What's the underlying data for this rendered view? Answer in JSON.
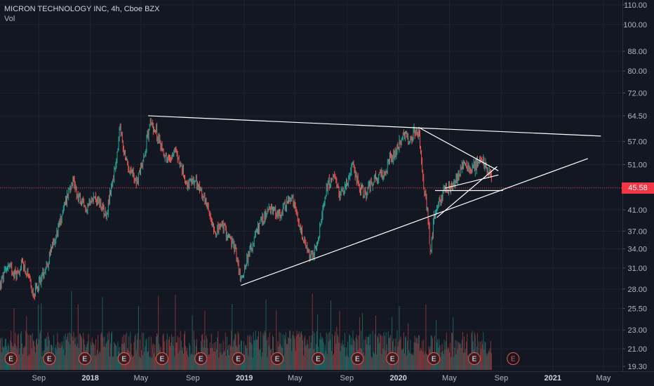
{
  "legend": {
    "symbol_line": "MICRON TECHNOLOGY INC, 4h, Cboe BZX",
    "volume_label": "Vol"
  },
  "current_price": {
    "label": "45.58",
    "value": 45.58,
    "color": "#f23645"
  },
  "colors": {
    "background": "#131722",
    "up": "#26a69a",
    "down": "#ef5350",
    "trendline": "#ffffff",
    "axis_text": "#b2b5be",
    "price_line": "#f23645"
  },
  "chart_data": {
    "type": "candlestick",
    "symbol": "MICRON TECHNOLOGY INC",
    "interval": "4h",
    "exchange": "Cboe BZX",
    "y_scale": "log",
    "ylim": [
      19.3,
      110.0
    ],
    "y_ticks": [
      110.0,
      100.0,
      88.0,
      80.0,
      72.0,
      64.5,
      57.0,
      51.0,
      45.58,
      41.0,
      37.0,
      34.0,
      31.0,
      28.0,
      25.5,
      23.0,
      21.0,
      19.3
    ],
    "y_tick_labels": [
      "110.00",
      "100.00",
      "88.00",
      "80.00",
      "72.00",
      "64.50",
      "57.00",
      "51.00",
      "45.58",
      "41.00",
      "37.00",
      "34.00",
      "31.00",
      "28.00",
      "25.50",
      "23.00",
      "21.00",
      "19.30"
    ],
    "x_range": [
      "2017-06-01",
      "2021-06-15"
    ],
    "x_ticks": [
      {
        "date": "2017-09-01",
        "label": "Sep"
      },
      {
        "date": "2018-01-01",
        "label": "2018"
      },
      {
        "date": "2018-05-01",
        "label": "May"
      },
      {
        "date": "2018-09-01",
        "label": "Sep"
      },
      {
        "date": "2019-01-01",
        "label": "2019"
      },
      {
        "date": "2019-05-01",
        "label": "May"
      },
      {
        "date": "2019-09-01",
        "label": "Sep"
      },
      {
        "date": "2020-01-01",
        "label": "2020"
      },
      {
        "date": "2020-05-01",
        "label": "May"
      },
      {
        "date": "2020-09-01",
        "label": "Sep"
      },
      {
        "date": "2021-01-01",
        "label": "2021"
      },
      {
        "date": "2021-05-01",
        "label": "May"
      }
    ],
    "price_path": [
      [
        "2017-06-01",
        28.5
      ],
      [
        "2017-06-20",
        31.5
      ],
      [
        "2017-07-10",
        30.0
      ],
      [
        "2017-07-25",
        31.8
      ],
      [
        "2017-08-15",
        28.0
      ],
      [
        "2017-08-22",
        27.5
      ],
      [
        "2017-09-10",
        30.0
      ],
      [
        "2017-09-25",
        32.5
      ],
      [
        "2017-10-15",
        37.0
      ],
      [
        "2017-11-01",
        42.0
      ],
      [
        "2017-11-20",
        48.0
      ],
      [
        "2017-12-01",
        44.0
      ],
      [
        "2017-12-20",
        41.0
      ],
      [
        "2018-01-05",
        44.0
      ],
      [
        "2018-01-25",
        42.0
      ],
      [
        "2018-02-08",
        40.0
      ],
      [
        "2018-02-20",
        46.0
      ],
      [
        "2018-03-05",
        52.0
      ],
      [
        "2018-03-12",
        61.0
      ],
      [
        "2018-03-25",
        52.0
      ],
      [
        "2018-04-10",
        49.0
      ],
      [
        "2018-04-22",
        47.0
      ],
      [
        "2018-05-10",
        54.0
      ],
      [
        "2018-05-22",
        62.5
      ],
      [
        "2018-06-05",
        60.0
      ],
      [
        "2018-06-20",
        55.0
      ],
      [
        "2018-07-05",
        52.0
      ],
      [
        "2018-07-20",
        55.0
      ],
      [
        "2018-08-05",
        50.0
      ],
      [
        "2018-08-20",
        46.0
      ],
      [
        "2018-09-05",
        47.0
      ],
      [
        "2018-09-20",
        45.0
      ],
      [
        "2018-10-10",
        40.0
      ],
      [
        "2018-10-25",
        37.0
      ],
      [
        "2018-11-10",
        38.0
      ],
      [
        "2018-11-25",
        36.0
      ],
      [
        "2018-12-10",
        34.0
      ],
      [
        "2018-12-24",
        29.0
      ],
      [
        "2019-01-05",
        32.0
      ],
      [
        "2019-01-20",
        34.5
      ],
      [
        "2019-02-05",
        38.0
      ],
      [
        "2019-02-20",
        40.0
      ],
      [
        "2019-03-10",
        41.5
      ],
      [
        "2019-03-25",
        39.5
      ],
      [
        "2019-04-10",
        42.5
      ],
      [
        "2019-04-25",
        43.0
      ],
      [
        "2019-05-10",
        38.0
      ],
      [
        "2019-05-25",
        34.5
      ],
      [
        "2019-06-05",
        32.5
      ],
      [
        "2019-06-20",
        34.0
      ],
      [
        "2019-07-01",
        38.0
      ],
      [
        "2019-07-15",
        46.0
      ],
      [
        "2019-07-30",
        48.0
      ],
      [
        "2019-08-15",
        44.0
      ],
      [
        "2019-08-28",
        46.0
      ],
      [
        "2019-09-15",
        50.5
      ],
      [
        "2019-09-30",
        46.0
      ],
      [
        "2019-10-15",
        44.0
      ],
      [
        "2019-10-30",
        47.0
      ],
      [
        "2019-11-15",
        48.0
      ],
      [
        "2019-11-28",
        48.5
      ],
      [
        "2019-12-10",
        52.0
      ],
      [
        "2019-12-24",
        54.0
      ],
      [
        "2020-01-10",
        58.0
      ],
      [
        "2020-01-20",
        59.0
      ],
      [
        "2020-01-28",
        56.0
      ],
      [
        "2020-02-10",
        60.5
      ],
      [
        "2020-02-20",
        58.0
      ],
      [
        "2020-02-28",
        48.0
      ],
      [
        "2020-03-10",
        40.0
      ],
      [
        "2020-03-18",
        33.0
      ],
      [
        "2020-03-25",
        40.0
      ],
      [
        "2020-04-05",
        42.0
      ],
      [
        "2020-04-20",
        45.0
      ],
      [
        "2020-05-05",
        46.0
      ],
      [
        "2020-05-20",
        48.0
      ],
      [
        "2020-06-05",
        51.5
      ],
      [
        "2020-06-20",
        50.0
      ],
      [
        "2020-07-05",
        51.0
      ],
      [
        "2020-07-20",
        52.0
      ],
      [
        "2020-07-28",
        50.0
      ],
      [
        "2020-08-05",
        49.0
      ],
      [
        "2020-08-10",
        45.58
      ]
    ],
    "earnings_markers": [
      "2017-06-27",
      "2017-09-26",
      "2017-12-19",
      "2018-03-22",
      "2018-06-20",
      "2018-09-20",
      "2018-12-18",
      "2019-03-20",
      "2019-06-25",
      "2019-09-26",
      "2019-12-18",
      "2020-03-25",
      "2020-06-29",
      "2020-09-29"
    ],
    "earnings_label": "E",
    "volume_scale": "relative",
    "trendlines": [
      {
        "start": [
          "2018-05-18",
          64.5
        ],
        "end": [
          "2021-04-25",
          58.5
        ],
        "name": "descending resistance"
      },
      {
        "start": [
          "2018-12-24",
          28.5
        ],
        "end": [
          "2021-03-25",
          52.5
        ],
        "name": "ascending support"
      },
      {
        "start": [
          "2020-02-18",
          61.0
        ],
        "end": [
          "2020-08-25",
          49.5
        ],
        "name": "upper wedge line"
      },
      {
        "start": [
          "2020-04-01",
          39.5
        ],
        "end": [
          "2020-08-22",
          50.5
        ],
        "name": "lower wedge line"
      },
      {
        "start": [
          "2020-04-20",
          45.5
        ],
        "end": [
          "2020-08-25",
          48.5
        ],
        "name": "inner channel"
      },
      {
        "start": [
          "2020-03-28",
          45.0
        ],
        "end": [
          "2020-09-05",
          45.0
        ],
        "name": "horizontal support"
      }
    ]
  }
}
